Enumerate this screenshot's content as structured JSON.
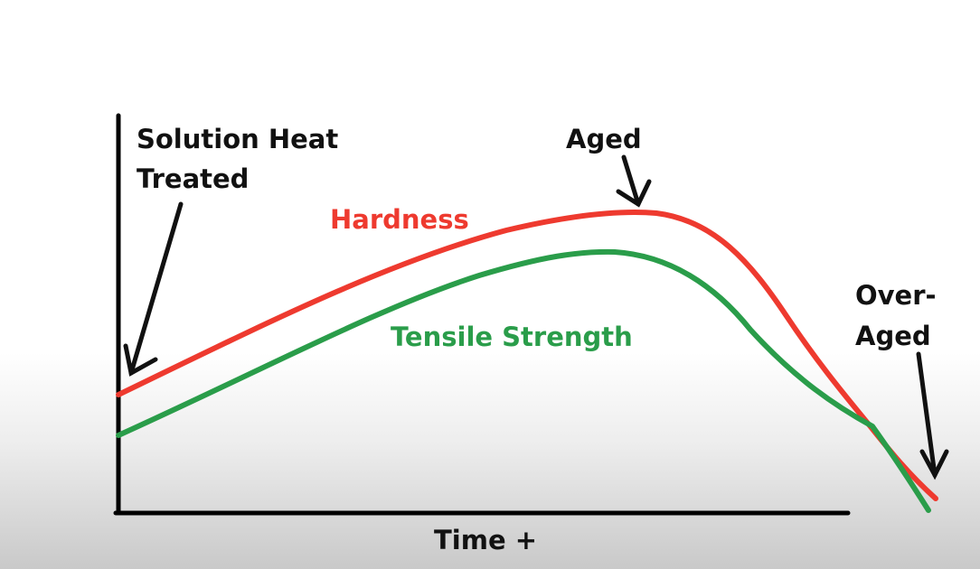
{
  "title": "",
  "x_axis_label": "Time +",
  "curves": {
    "hardness": {
      "label": "Hardness",
      "color": "#ee3a2f"
    },
    "tensile": {
      "label": "Tensile Strength",
      "color": "#2a9d4a"
    }
  },
  "annotations": {
    "solution": [
      "Solution Heat",
      "Treated"
    ],
    "aged": "Aged",
    "overaged": [
      "Over-",
      "Aged"
    ]
  },
  "colors": {
    "axis": "#000000",
    "annotation": "#111111"
  }
}
